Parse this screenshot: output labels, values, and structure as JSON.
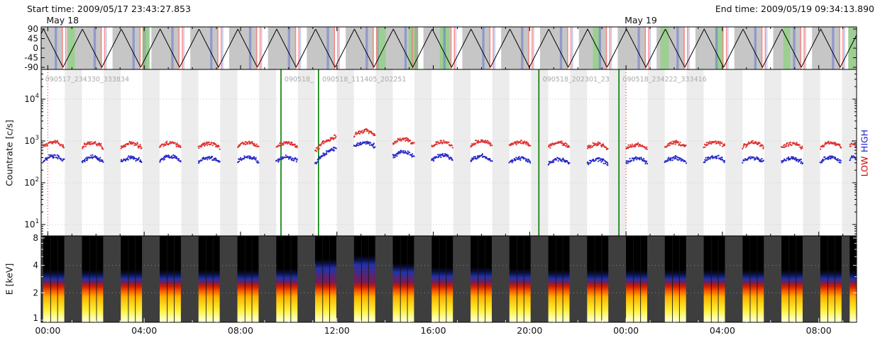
{
  "header": {
    "start_label": "Start time: 2009/05/17 23:43:27.853",
    "end_label": "End time: 2009/05/19 09:34:13.890"
  },
  "date_labels": [
    {
      "text": "May 18",
      "t_hours": 0.276
    },
    {
      "text": "May 19",
      "t_hours": 24.276
    }
  ],
  "chart_data": {
    "type": "multi-panel orbital time series (scan angle, countrate, energy spectrogram)",
    "time_axis": {
      "start": "2009/05/17 23:43:27.853",
      "end": "2009/05/19 09:34:13.890",
      "span_hours": 33.846,
      "first_tick_offset_hours": 0.276,
      "major_tick_interval_hours": 4,
      "minor_tick_interval_hours": 1,
      "tick_labels": [
        "00:00",
        "04:00",
        "08:00",
        "12:00",
        "16:00",
        "20:00",
        "00:00",
        "04:00",
        "08:00"
      ]
    },
    "panels": {
      "angle": {
        "ylim": [
          -90,
          90
        ],
        "yticks": [
          90,
          45,
          0,
          -45,
          -90
        ],
        "wave": {
          "shape": "triangle",
          "period_hours": 1.613,
          "amplitude_deg": 90,
          "first_peak_hours": 0.1
        },
        "bands": {
          "gray": {
            "period": 1.613,
            "from": 1.35,
            "to": 2.5,
            "color": "#c6c6c6"
          },
          "blue": {
            "period": 1.613,
            "from": 0.56,
            "to": 0.66,
            "color": "rgba(110,125,205,0.60)"
          },
          "blue2": {
            "period": 1.613,
            "from": 1.06,
            "to": 1.11,
            "color": "rgba(110,125,205,0.40)"
          },
          "red": {
            "period": 1.613,
            "from": 0.86,
            "to": 0.905,
            "color": "rgba(248,120,120,0.85)"
          },
          "red2": {
            "period": 1.613,
            "from": 1.0,
            "to": 1.045,
            "color": "rgba(248,120,120,0.85)"
          },
          "green_intervals": [
            [
              1.1,
              1.4
            ],
            [
              4.2,
              4.5
            ],
            [
              13.9,
              14.3
            ],
            [
              15.25,
              15.65
            ],
            [
              16.55,
              16.95
            ],
            [
              22.9,
              23.2
            ],
            [
              25.7,
              26.05
            ],
            [
              28.0,
              28.3
            ],
            [
              30.8,
              31.1
            ],
            [
              33.5,
              33.8
            ]
          ],
          "green_color": "#9ccf92"
        }
      },
      "countrate": {
        "ylabel": "Countrate [c/s]",
        "scale": "log10",
        "yticks": [
          10,
          100,
          1000,
          10000
        ],
        "series_labels": [
          {
            "text": "HIGH",
            "color": "#2222cc"
          },
          {
            "text": "LOW",
            "color": "#cc0000"
          }
        ],
        "series_colors": {
          "red": "#e03030",
          "blue": "#2626c8"
        },
        "gap_shade": {
          "period": 1.613,
          "from": 0.98,
          "to": 1.69,
          "color": "#ececec"
        },
        "day_boundaries_hours": [
          0.276,
          24.276
        ],
        "segment_start_lines_hours": [
          9.955,
          11.511,
          20.659,
          23.982
        ],
        "segment_labels": [
          {
            "t_hours": 0.05,
            "text": "090517_234330_333834"
          },
          {
            "t_hours": 9.98,
            "text": "090518_"
          },
          {
            "t_hours": 11.55,
            "text": "090518_111405_202251"
          },
          {
            "t_hours": 20.7,
            "text": "090518_202301_23"
          },
          {
            "t_hours": 24.02,
            "text": "090518_234222_333416"
          }
        ]
      },
      "spectrogram": {
        "ylabel": "E [keV]",
        "scale": "log2",
        "ylim": [
          1,
          8
        ],
        "yticks": [
          8,
          4,
          2,
          1
        ],
        "yticks_minor": [
          3,
          5,
          6,
          7
        ],
        "background": "#3e3e3e",
        "gridlines_keV": [
          2,
          4
        ]
      }
    },
    "bursts": [
      {
        "t0": 0.08,
        "t1": 0.96,
        "red": 950,
        "blue": 430,
        "emax": 3.2
      },
      {
        "t0": 1.693,
        "t1": 2.573,
        "red": 900,
        "blue": 410,
        "emax": 3.2
      },
      {
        "t0": 3.306,
        "t1": 4.186,
        "red": 880,
        "blue": 400,
        "emax": 3.2
      },
      {
        "t0": 4.919,
        "t1": 5.799,
        "red": 900,
        "blue": 420,
        "emax": 3.2
      },
      {
        "t0": 6.532,
        "t1": 7.412,
        "red": 880,
        "blue": 400,
        "emax": 3.2
      },
      {
        "t0": 8.145,
        "t1": 9.025,
        "red": 900,
        "blue": 415,
        "emax": 3.2
      },
      {
        "t0": 9.758,
        "t1": 10.638,
        "red": 910,
        "blue": 410,
        "emax": 3.3
      },
      {
        "t0": 11.371,
        "t1": 12.251,
        "red": 1300,
        "blue": 680,
        "emax": 4.2,
        "shape": "rise"
      },
      {
        "t0": 12.984,
        "t1": 13.864,
        "red": 1750,
        "blue": 930,
        "emax": 4.6
      },
      {
        "t0": 14.597,
        "t1": 15.477,
        "red": 1100,
        "blue": 540,
        "emax": 3.8
      },
      {
        "t0": 16.21,
        "t1": 17.09,
        "red": 960,
        "blue": 450,
        "emax": 3.4
      },
      {
        "t0": 17.823,
        "t1": 18.703,
        "red": 1000,
        "blue": 430,
        "emax": 3.4
      },
      {
        "t0": 19.436,
        "t1": 20.316,
        "red": 950,
        "blue": 390,
        "emax": 3.3
      },
      {
        "t0": 21.049,
        "t1": 21.929,
        "red": 900,
        "blue": 360,
        "emax": 3.2
      },
      {
        "t0": 22.662,
        "t1": 23.542,
        "red": 850,
        "blue": 355,
        "emax": 3.2
      },
      {
        "t0": 24.275,
        "t1": 25.155,
        "red": 820,
        "blue": 380,
        "emax": 3.2
      },
      {
        "t0": 25.888,
        "t1": 26.768,
        "red": 900,
        "blue": 400,
        "emax": 3.2
      },
      {
        "t0": 27.501,
        "t1": 28.381,
        "red": 950,
        "blue": 420,
        "emax": 3.2
      },
      {
        "t0": 29.114,
        "t1": 29.994,
        "red": 900,
        "blue": 400,
        "emax": 3.2
      },
      {
        "t0": 30.727,
        "t1": 31.607,
        "red": 860,
        "blue": 390,
        "emax": 3.2
      },
      {
        "t0": 32.34,
        "t1": 33.22,
        "red": 900,
        "blue": 400,
        "emax": 3.2
      },
      {
        "t0": 33.56,
        "t1": 33.83,
        "red": 900,
        "blue": 420,
        "emax": 3.2
      }
    ]
  }
}
